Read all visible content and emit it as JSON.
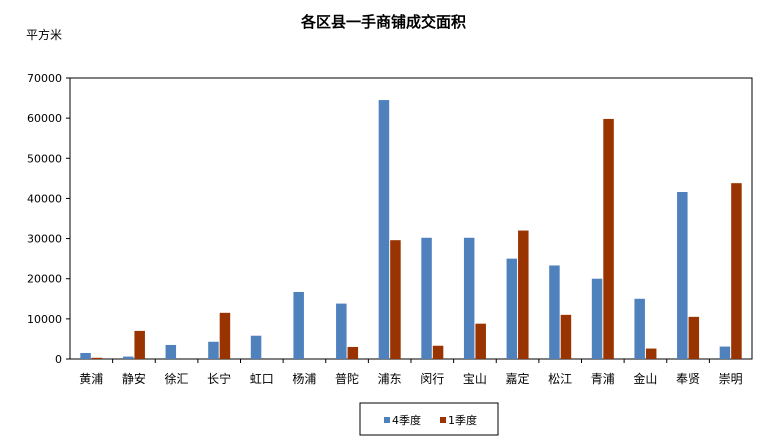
{
  "chart_data": {
    "type": "bar",
    "title": "各区县一手商铺成交面积",
    "ylabel": "平方米",
    "xlabel": "",
    "ylim": [
      0,
      70000
    ],
    "yticks": [
      0,
      10000,
      20000,
      30000,
      40000,
      50000,
      60000,
      70000
    ],
    "grid": false,
    "legend_position": "bottom",
    "categories": [
      "黄浦",
      "静安",
      "徐汇",
      "长宁",
      "虹口",
      "杨浦",
      "普陀",
      "浦东",
      "闵行",
      "宝山",
      "嘉定",
      "松江",
      "青浦",
      "金山",
      "奉贤",
      "崇明"
    ],
    "series": [
      {
        "name": "4季度",
        "color": "#4F81BD",
        "values": [
          1500,
          600,
          3500,
          4300,
          5800,
          16700,
          13800,
          64500,
          30200,
          30200,
          25000,
          23300,
          20000,
          15000,
          41600,
          3100
        ]
      },
      {
        "name": "1季度",
        "color": "#993300",
        "values": [
          300,
          7000,
          0,
          11500,
          0,
          0,
          3000,
          29600,
          3300,
          8800,
          32000,
          11000,
          59800,
          2600,
          10500,
          43800
        ]
      }
    ]
  }
}
